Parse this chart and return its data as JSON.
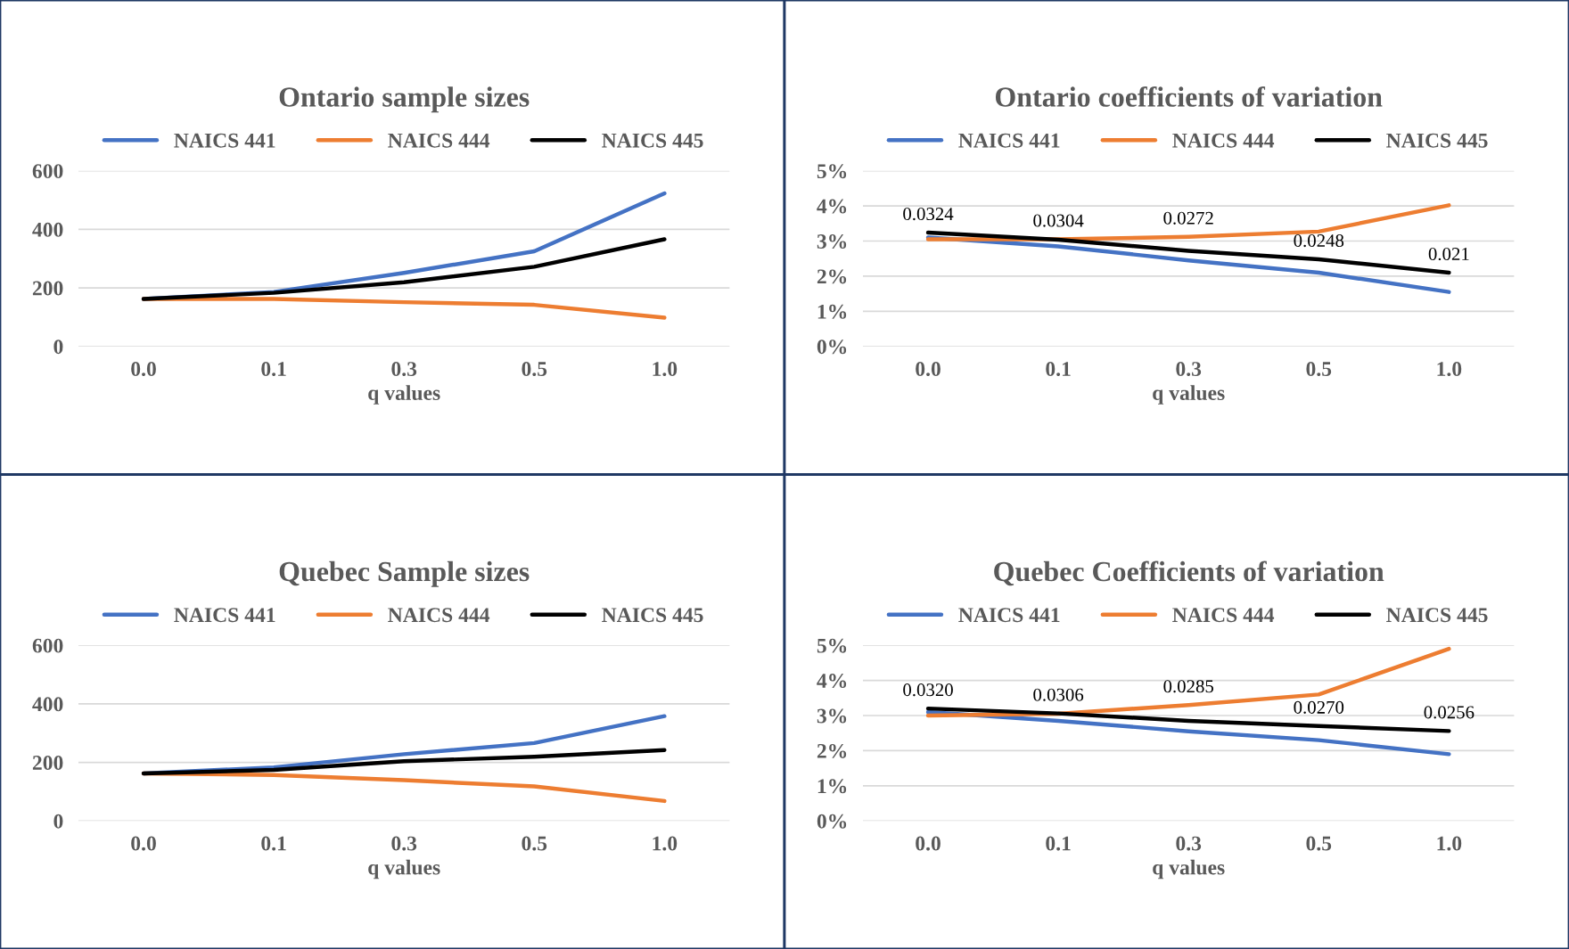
{
  "chart_data": [
    {
      "type": "line",
      "title": "Ontario sample sizes",
      "xlabel": "q values",
      "categories": [
        "0.0",
        "0.1",
        "0.3",
        "0.5",
        "1.0"
      ],
      "ylim": [
        0,
        600
      ],
      "yticks": [
        0,
        200,
        400,
        600
      ],
      "grid": "y",
      "legend": "top",
      "marker": "none",
      "line_style": "solid",
      "series": [
        {
          "name": "NAICS 441",
          "color": "#4472c4",
          "values": [
            162,
            186,
            251,
            325,
            523
          ]
        },
        {
          "name": "NAICS 444",
          "color": "#ed7d31",
          "values": [
            162,
            162,
            151,
            142,
            98
          ]
        },
        {
          "name": "NAICS 445",
          "color": "#000000",
          "values": [
            162,
            183,
            219,
            272,
            366
          ]
        }
      ]
    },
    {
      "type": "line",
      "title": "Ontario coefficients of variation",
      "xlabel": "q values",
      "categories": [
        "0.0",
        "0.1",
        "0.3",
        "0.5",
        "1.0"
      ],
      "ylim": [
        0,
        0.05
      ],
      "yticks": [
        {
          "value": 0,
          "label": "0%"
        },
        {
          "value": 0.01,
          "label": "1%"
        },
        {
          "value": 0.02,
          "label": "2%"
        },
        {
          "value": 0.03,
          "label": "3%"
        },
        {
          "value": 0.04,
          "label": "4%"
        },
        {
          "value": 0.05,
          "label": "5%"
        }
      ],
      "grid": "y",
      "legend": "top",
      "marker": "none",
      "line_style": "solid",
      "series": [
        {
          "name": "NAICS 441",
          "color": "#4472c4",
          "values": [
            0.031,
            0.0285,
            0.0245,
            0.021,
            0.0155
          ]
        },
        {
          "name": "NAICS 444",
          "color": "#ed7d31",
          "values": [
            0.0305,
            0.0305,
            0.0312,
            0.0327,
            0.0402
          ]
        },
        {
          "name": "NAICS 445",
          "color": "#000000",
          "values": [
            0.0324,
            0.0304,
            0.0272,
            0.0248,
            0.021
          ],
          "value_labels": [
            "0.0324",
            "0.0304",
            "0.0272",
            "0.0248",
            "0.021"
          ]
        }
      ]
    },
    {
      "type": "line",
      "title": "Quebec Sample sizes",
      "xlabel": "q values",
      "categories": [
        "0.0",
        "0.1",
        "0.3",
        "0.5",
        "1.0"
      ],
      "ylim": [
        0,
        600
      ],
      "yticks": [
        0,
        200,
        400,
        600
      ],
      "grid": "y",
      "legend": "top",
      "marker": "none",
      "line_style": "solid",
      "series": [
        {
          "name": "NAICS 441",
          "color": "#4472c4",
          "values": [
            162,
            183,
            228,
            266,
            358
          ]
        },
        {
          "name": "NAICS 444",
          "color": "#ed7d31",
          "values": [
            162,
            157,
            139,
            118,
            68
          ]
        },
        {
          "name": "NAICS 445",
          "color": "#000000",
          "values": [
            162,
            174,
            204,
            219,
            242
          ]
        }
      ]
    },
    {
      "type": "line",
      "title": "Quebec Coefficients of variation",
      "xlabel": "q values",
      "categories": [
        "0.0",
        "0.1",
        "0.3",
        "0.5",
        "1.0"
      ],
      "ylim": [
        0,
        0.05
      ],
      "yticks": [
        {
          "value": 0,
          "label": "0%"
        },
        {
          "value": 0.01,
          "label": "1%"
        },
        {
          "value": 0.02,
          "label": "2%"
        },
        {
          "value": 0.03,
          "label": "3%"
        },
        {
          "value": 0.04,
          "label": "4%"
        },
        {
          "value": 0.05,
          "label": "5%"
        }
      ],
      "grid": "y",
      "legend": "top",
      "marker": "none",
      "line_style": "solid",
      "series": [
        {
          "name": "NAICS 441",
          "color": "#4472c4",
          "values": [
            0.031,
            0.0285,
            0.0255,
            0.023,
            0.019
          ]
        },
        {
          "name": "NAICS 444",
          "color": "#ed7d31",
          "values": [
            0.03,
            0.0305,
            0.033,
            0.036,
            0.049
          ]
        },
        {
          "name": "NAICS 445",
          "color": "#000000",
          "values": [
            0.032,
            0.0306,
            0.0285,
            0.027,
            0.0256
          ],
          "value_labels": [
            "0.0320",
            "0.0306",
            "0.0285",
            "0.0270",
            "0.0256"
          ]
        }
      ]
    }
  ]
}
